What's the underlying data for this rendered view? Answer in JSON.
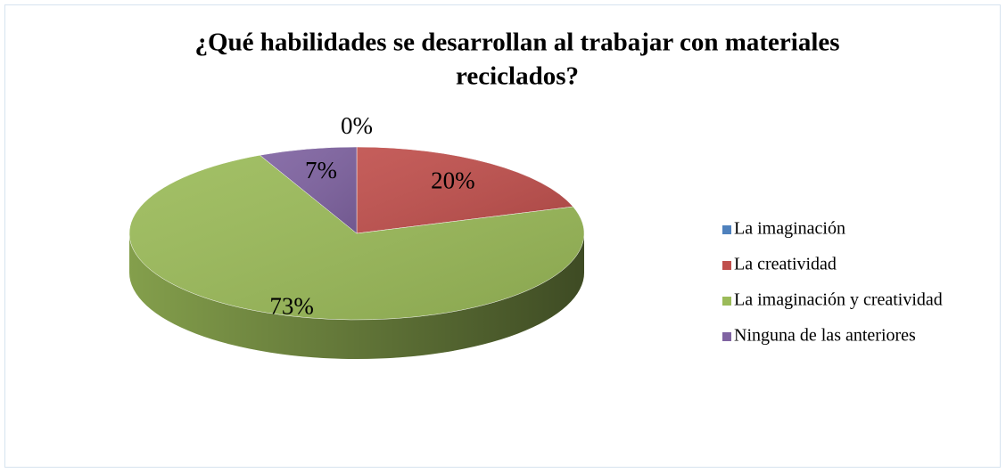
{
  "chart_data": {
    "type": "pie",
    "title": [
      "¿Qué habilidades se desarrollan al trabajar con materiales",
      "reciclados?"
    ],
    "categories": [
      "La imaginación",
      "La creatividad",
      "La imaginación y creatividad",
      "Ninguna de las anteriores"
    ],
    "values": [
      0,
      20,
      73,
      7
    ],
    "value_labels": [
      "0%",
      "20%",
      "73%",
      "7%"
    ],
    "colors": [
      "#4f81bd",
      "#c0504d",
      "#9bbb59",
      "#8064a2"
    ],
    "legend": "right"
  }
}
